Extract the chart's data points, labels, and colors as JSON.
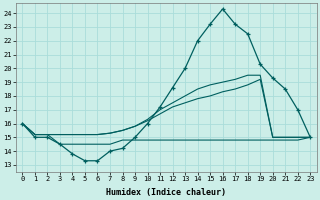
{
  "bg_color": "#cceee8",
  "grid_color": "#aaddda",
  "line_color": "#005f5f",
  "xlabel": "Humidex (Indice chaleur)",
  "xlim": [
    -0.5,
    23.5
  ],
  "ylim": [
    12.5,
    24.7
  ],
  "xticks": [
    0,
    1,
    2,
    3,
    4,
    5,
    6,
    7,
    8,
    9,
    10,
    11,
    12,
    13,
    14,
    15,
    16,
    17,
    18,
    19,
    20,
    21,
    22,
    23
  ],
  "yticks": [
    13,
    14,
    15,
    16,
    17,
    18,
    19,
    20,
    21,
    22,
    23,
    24
  ],
  "line_main_x": [
    0,
    1,
    2,
    3,
    4,
    5,
    6,
    7,
    8,
    9,
    10,
    11,
    12,
    13,
    14,
    15,
    16,
    17,
    18,
    19,
    20,
    21,
    22,
    23
  ],
  "line_main_y": [
    16.0,
    15.0,
    15.0,
    14.5,
    13.8,
    13.3,
    13.3,
    14.0,
    14.2,
    15.0,
    16.0,
    17.2,
    18.6,
    20.0,
    22.0,
    23.2,
    24.3,
    23.2,
    22.5,
    20.3,
    19.3,
    18.5,
    17.0,
    15.0
  ],
  "line_a_x": [
    0,
    1,
    2,
    3,
    4,
    5,
    6,
    7,
    8,
    9,
    10,
    11,
    12,
    13,
    14,
    15,
    16,
    17,
    18,
    19,
    20,
    21,
    22,
    23
  ],
  "line_a_y": [
    16.0,
    15.2,
    15.2,
    15.2,
    15.2,
    15.2,
    15.2,
    15.3,
    15.5,
    15.8,
    16.2,
    16.7,
    17.2,
    17.5,
    17.8,
    18.0,
    18.3,
    18.5,
    18.8,
    19.2,
    15.0,
    15.0,
    15.0,
    15.0
  ],
  "line_b_x": [
    0,
    1,
    2,
    3,
    4,
    5,
    6,
    7,
    8,
    9,
    10,
    11,
    12,
    13,
    14,
    15,
    16,
    17,
    18,
    19,
    20,
    21,
    22,
    23
  ],
  "line_b_y": [
    16.0,
    15.2,
    15.2,
    15.2,
    15.2,
    15.2,
    15.2,
    15.3,
    15.5,
    15.8,
    16.3,
    17.0,
    17.5,
    18.0,
    18.5,
    18.8,
    19.0,
    19.2,
    19.5,
    19.5,
    15.0,
    15.0,
    15.0,
    15.0
  ],
  "line_c_x": [
    0,
    1,
    2,
    3,
    4,
    5,
    6,
    7,
    8,
    9,
    10,
    11,
    12,
    13,
    14,
    15,
    16,
    17,
    18,
    19,
    20,
    21,
    22,
    23
  ],
  "line_c_y": [
    16.0,
    15.2,
    15.2,
    14.5,
    14.5,
    14.5,
    14.5,
    14.5,
    14.8,
    14.8,
    14.8,
    14.8,
    14.8,
    14.8,
    14.8,
    14.8,
    14.8,
    14.8,
    14.8,
    14.8,
    14.8,
    14.8,
    14.8,
    15.0
  ]
}
